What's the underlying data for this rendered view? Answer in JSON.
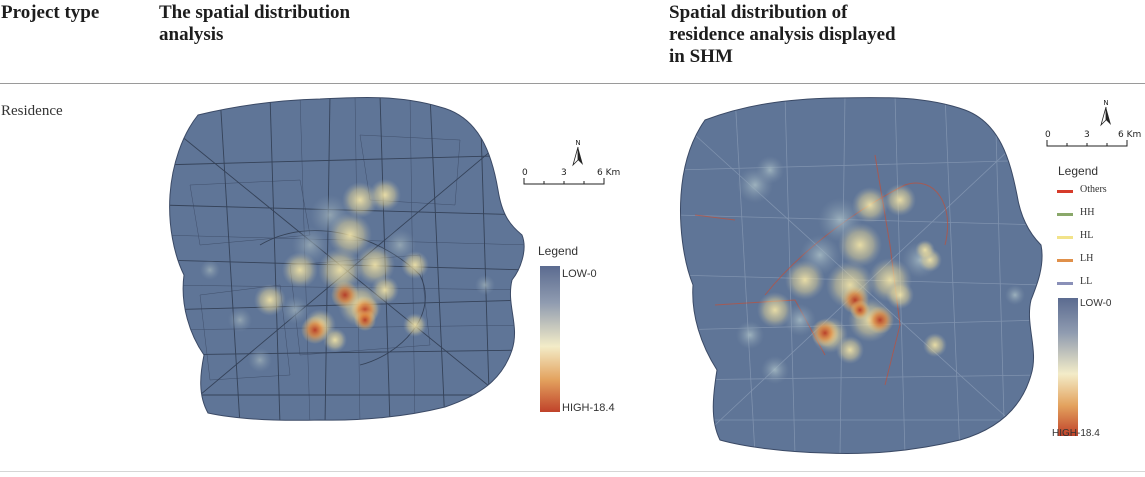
{
  "table": {
    "headers": [
      "Project type",
      "The spatial distribution analysis",
      "Spatial distribution of residence analysis displayed in SHM"
    ],
    "header_lines": {
      "col2": [
        "The spatial distribution",
        "analysis"
      ],
      "col3": [
        "Spatial distribution of",
        "residence analysis displayed",
        "in SHM"
      ]
    },
    "rows": [
      {
        "project_type": "Residence"
      }
    ]
  },
  "map_left": {
    "legend_title": "Legend",
    "low_label": "LOW-0",
    "high_label": "HIGH-18.4",
    "scale_labels": [
      "0",
      "3",
      "6 Km"
    ],
    "north_label": "N"
  },
  "map_right": {
    "legend_title": "Legend",
    "categories": [
      {
        "label": "Others",
        "color": "#d63b2a"
      },
      {
        "label": "HH",
        "color": "#8aa86a"
      },
      {
        "label": "HL",
        "color": "#f2e38a"
      },
      {
        "label": "LH",
        "color": "#e0904a"
      },
      {
        "label": "LL",
        "color": "#8a90b8"
      }
    ],
    "low_label": "LOW-0",
    "high_label": "HIGH-18.4",
    "scale_labels": [
      "0",
      "3",
      "6 Km"
    ],
    "north_label": "N"
  },
  "colors": {
    "map_base": "#5f7597",
    "ramp_low": "#5b6b90",
    "ramp_mid": "#f6efc6",
    "ramp_high": "#c0422a"
  }
}
